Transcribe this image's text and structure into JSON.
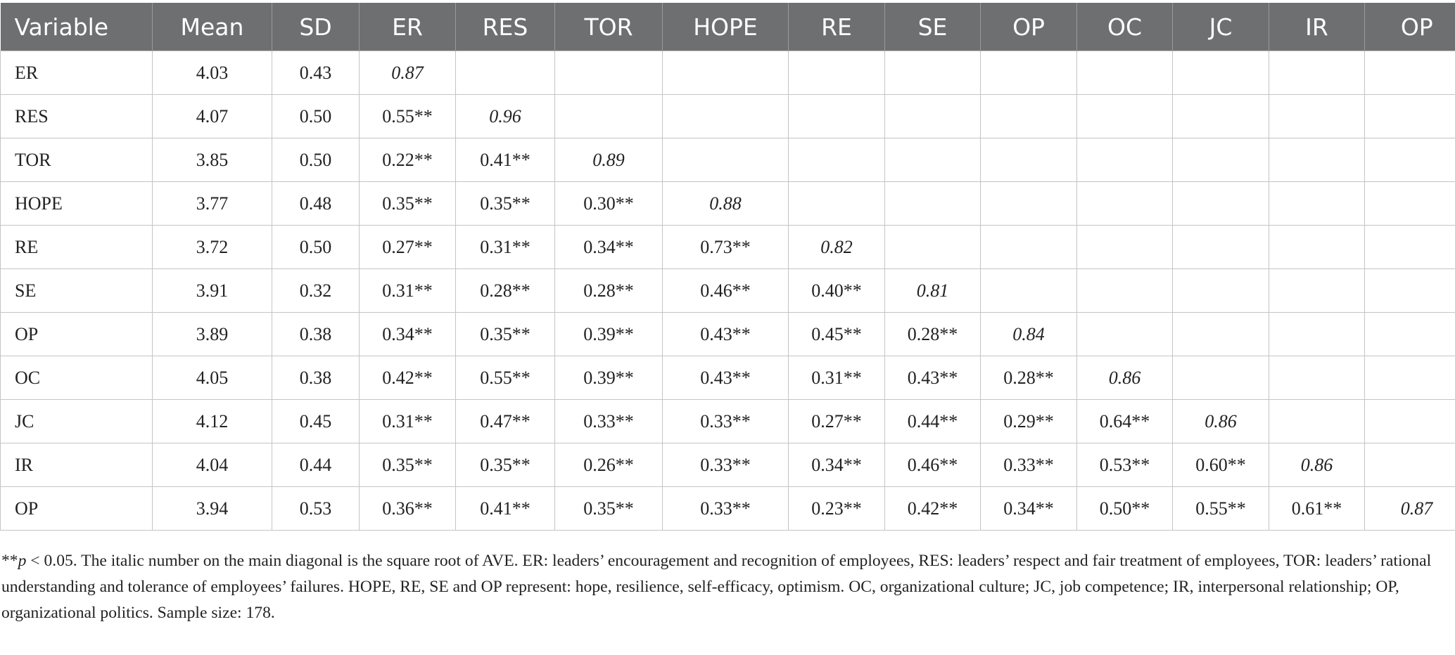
{
  "table": {
    "headers": [
      "Variable",
      "Mean",
      "SD",
      "ER",
      "RES",
      "TOR",
      "HOPE",
      "RE",
      "SE",
      "OP",
      "OC",
      "JC",
      "IR",
      "OP"
    ],
    "rows": [
      {
        "variable": "ER",
        "mean": "4.03",
        "sd": "0.43",
        "corr": [
          "0.87"
        ]
      },
      {
        "variable": "RES",
        "mean": "4.07",
        "sd": "0.50",
        "corr": [
          "0.55**",
          "0.96"
        ]
      },
      {
        "variable": "TOR",
        "mean": "3.85",
        "sd": "0.50",
        "corr": [
          "0.22**",
          "0.41**",
          "0.89"
        ]
      },
      {
        "variable": "HOPE",
        "mean": "3.77",
        "sd": "0.48",
        "corr": [
          "0.35**",
          "0.35**",
          "0.30**",
          "0.88"
        ]
      },
      {
        "variable": "RE",
        "mean": "3.72",
        "sd": "0.50",
        "corr": [
          "0.27**",
          "0.31**",
          "0.34**",
          "0.73**",
          "0.82"
        ]
      },
      {
        "variable": "SE",
        "mean": "3.91",
        "sd": "0.32",
        "corr": [
          "0.31**",
          "0.28**",
          "0.28**",
          "0.46**",
          "0.40**",
          "0.81"
        ]
      },
      {
        "variable": "OP",
        "mean": "3.89",
        "sd": "0.38",
        "corr": [
          "0.34**",
          "0.35**",
          "0.39**",
          "0.43**",
          "0.45**",
          "0.28**",
          "0.84"
        ]
      },
      {
        "variable": "OC",
        "mean": "4.05",
        "sd": "0.38",
        "corr": [
          "0.42**",
          "0.55**",
          "0.39**",
          "0.43**",
          "0.31**",
          "0.43**",
          "0.28**",
          "0.86"
        ]
      },
      {
        "variable": "JC",
        "mean": "4.12",
        "sd": "0.45",
        "corr": [
          "0.31**",
          "0.47**",
          "0.33**",
          "0.33**",
          "0.27**",
          "0.44**",
          "0.29**",
          "0.64**",
          "0.86"
        ]
      },
      {
        "variable": "IR",
        "mean": "4.04",
        "sd": "0.44",
        "corr": [
          "0.35**",
          "0.35**",
          "0.26**",
          "0.33**",
          "0.34**",
          "0.46**",
          "0.33**",
          "0.53**",
          "0.60**",
          "0.86"
        ]
      },
      {
        "variable": "OP",
        "mean": "3.94",
        "sd": "0.53",
        "corr": [
          "0.36**",
          "0.41**",
          "0.35**",
          "0.33**",
          "0.23**",
          "0.42**",
          "0.34**",
          "0.50**",
          "0.55**",
          "0.61**",
          "0.87"
        ]
      }
    ]
  },
  "footnote": {
    "sig_prefix": "**",
    "sig_p": "p",
    "sig_rest": " < 0.05. The italic number on the main diagonal is the square root of AVE. ER: leaders’ encouragement and recognition of employees, RES: leaders’ respect and fair treatment of employees, TOR: leaders’ rational understanding and tolerance of employees’ failures. HOPE, RE, SE and OP represent: hope, resilience, self-efficacy, optimism. OC, organizational culture; JC, job competence; IR, interpersonal relationship; OP, organizational politics. Sample size: 178."
  }
}
